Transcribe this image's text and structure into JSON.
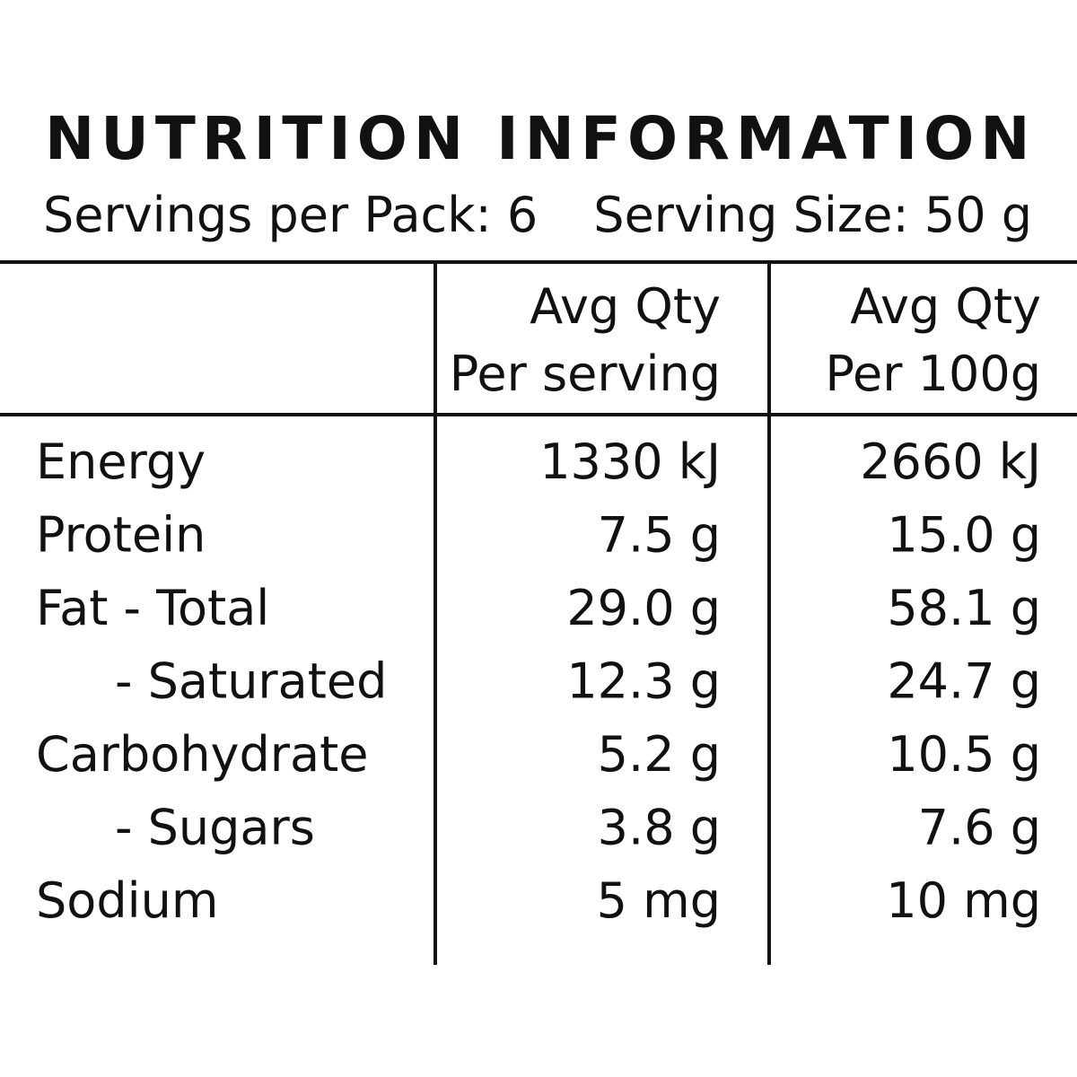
{
  "header": {
    "title": "NUTRITION INFORMATION",
    "servings_per_pack": "Servings per Pack: 6",
    "serving_size": "Serving Size: 50 g"
  },
  "table": {
    "columns": [
      [
        "Avg Qty",
        "Per serving"
      ],
      [
        "Avg Qty",
        "Per 100g"
      ]
    ],
    "rows": [
      [
        "Energy",
        "1330 kJ",
        "2660 kJ"
      ],
      [
        "Protein",
        "7.5 g",
        "15.0 g"
      ],
      [
        "Fat - Total",
        "29.0 g",
        "58.1 g"
      ],
      [
        "- Saturated",
        "12.3 g",
        "24.7 g"
      ],
      [
        "Carbohydrate",
        "5.2 g",
        "10.5 g"
      ],
      [
        "- Sugars",
        "3.8 g",
        "7.6 g"
      ],
      [
        "Sodium",
        "5 mg",
        "10 mg"
      ]
    ]
  }
}
